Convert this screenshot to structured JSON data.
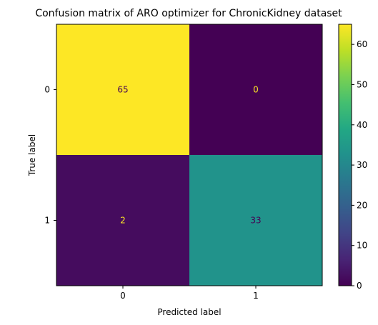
{
  "chart_data": {
    "type": "heatmap",
    "title": "Confusion matrix of ARO optimizer for ChronicKidney dataset",
    "xlabel": "Predicted label",
    "ylabel": "True label",
    "x_categories": [
      "0",
      "1"
    ],
    "y_categories": [
      "0",
      "1"
    ],
    "values": [
      [
        65,
        0
      ],
      [
        2,
        33
      ]
    ],
    "colormap": "viridis",
    "value_range": [
      0,
      65
    ],
    "colorbar": {
      "ticks": [
        0,
        10,
        20,
        30,
        40,
        50,
        60
      ],
      "tick_labels": [
        "0",
        "10",
        "20",
        "30",
        "40",
        "50",
        "60"
      ]
    },
    "grid": false,
    "text_colors": {
      "on_dark": "#fde725",
      "on_light": "#440154"
    }
  }
}
